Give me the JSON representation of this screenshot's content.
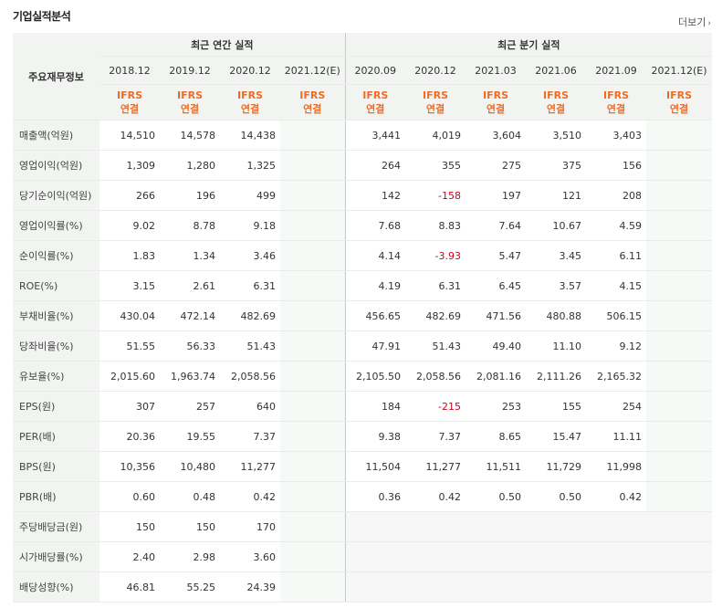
{
  "title": "기업실적분석",
  "more": {
    "label": "더보기",
    "arrow": "›"
  },
  "label_header": "주요재무정보",
  "annual_header": "최근 연간 실적",
  "quarter_header": "최근 분기 실적",
  "annual_periods": [
    "2018.12",
    "2019.12",
    "2020.12",
    "2021.12(E)"
  ],
  "quarter_periods": [
    "2020.09",
    "2020.12",
    "2021.03",
    "2021.06",
    "2021.09",
    "2021.12(E)"
  ],
  "basis_top": "IFRS",
  "basis_bottom": "연결",
  "rows": [
    {
      "label": "매출액(억원)",
      "annual": [
        "14,510",
        "14,578",
        "14,438",
        ""
      ],
      "quarter": [
        "3,441",
        "4,019",
        "3,604",
        "3,510",
        "3,403",
        ""
      ]
    },
    {
      "label": "영업이익(억원)",
      "annual": [
        "1,309",
        "1,280",
        "1,325",
        ""
      ],
      "quarter": [
        "264",
        "355",
        "275",
        "375",
        "156",
        ""
      ]
    },
    {
      "label": "당기순이익(억원)",
      "annual": [
        "266",
        "196",
        "499",
        ""
      ],
      "quarter": [
        "142",
        "-158",
        "197",
        "121",
        "208",
        ""
      ]
    },
    {
      "label": "영업이익률(%)",
      "annual": [
        "9.02",
        "8.78",
        "9.18",
        ""
      ],
      "quarter": [
        "7.68",
        "8.83",
        "7.64",
        "10.67",
        "4.59",
        ""
      ]
    },
    {
      "label": "순이익률(%)",
      "annual": [
        "1.83",
        "1.34",
        "3.46",
        ""
      ],
      "quarter": [
        "4.14",
        "-3.93",
        "5.47",
        "3.45",
        "6.11",
        ""
      ]
    },
    {
      "label": "ROE(%)",
      "annual": [
        "3.15",
        "2.61",
        "6.31",
        ""
      ],
      "quarter": [
        "4.19",
        "6.31",
        "6.45",
        "3.57",
        "4.15",
        ""
      ]
    },
    {
      "label": "부채비율(%)",
      "annual": [
        "430.04",
        "472.14",
        "482.69",
        ""
      ],
      "quarter": [
        "456.65",
        "482.69",
        "471.56",
        "480.88",
        "506.15",
        ""
      ]
    },
    {
      "label": "당좌비율(%)",
      "annual": [
        "51.55",
        "56.33",
        "51.43",
        ""
      ],
      "quarter": [
        "47.91",
        "51.43",
        "49.40",
        "11.10",
        "9.12",
        ""
      ]
    },
    {
      "label": "유보율(%)",
      "annual": [
        "2,015.60",
        "1,963.74",
        "2,058.56",
        ""
      ],
      "quarter": [
        "2,105.50",
        "2,058.56",
        "2,081.16",
        "2,111.26",
        "2,165.32",
        ""
      ]
    },
    {
      "label": "EPS(원)",
      "annual": [
        "307",
        "257",
        "640",
        ""
      ],
      "quarter": [
        "184",
        "-215",
        "253",
        "155",
        "254",
        ""
      ]
    },
    {
      "label": "PER(배)",
      "annual": [
        "20.36",
        "19.55",
        "7.37",
        ""
      ],
      "quarter": [
        "9.38",
        "7.37",
        "8.65",
        "15.47",
        "11.11",
        ""
      ]
    },
    {
      "label": "BPS(원)",
      "annual": [
        "10,356",
        "10,480",
        "11,277",
        ""
      ],
      "quarter": [
        "11,504",
        "11,277",
        "11,511",
        "11,729",
        "11,998",
        ""
      ]
    },
    {
      "label": "PBR(배)",
      "annual": [
        "0.60",
        "0.48",
        "0.42",
        ""
      ],
      "quarter": [
        "0.36",
        "0.42",
        "0.50",
        "0.50",
        "0.42",
        ""
      ]
    },
    {
      "label": "주당배당금(원)",
      "annual": [
        "150",
        "150",
        "170",
        ""
      ],
      "quarter": [
        "",
        "",
        "",
        "",
        "",
        ""
      ]
    },
    {
      "label": "시가배당률(%)",
      "annual": [
        "2.40",
        "2.98",
        "3.60",
        ""
      ],
      "quarter": [
        "",
        "",
        "",
        "",
        "",
        ""
      ]
    },
    {
      "label": "배당성향(%)",
      "annual": [
        "46.81",
        "55.25",
        "24.39",
        ""
      ],
      "quarter": [
        "",
        "",
        "",
        "",
        "",
        ""
      ]
    }
  ],
  "colors": {
    "ifrs": "#ef6c27",
    "negative": "#d0021b",
    "header_bg": "#f1f4f1"
  }
}
